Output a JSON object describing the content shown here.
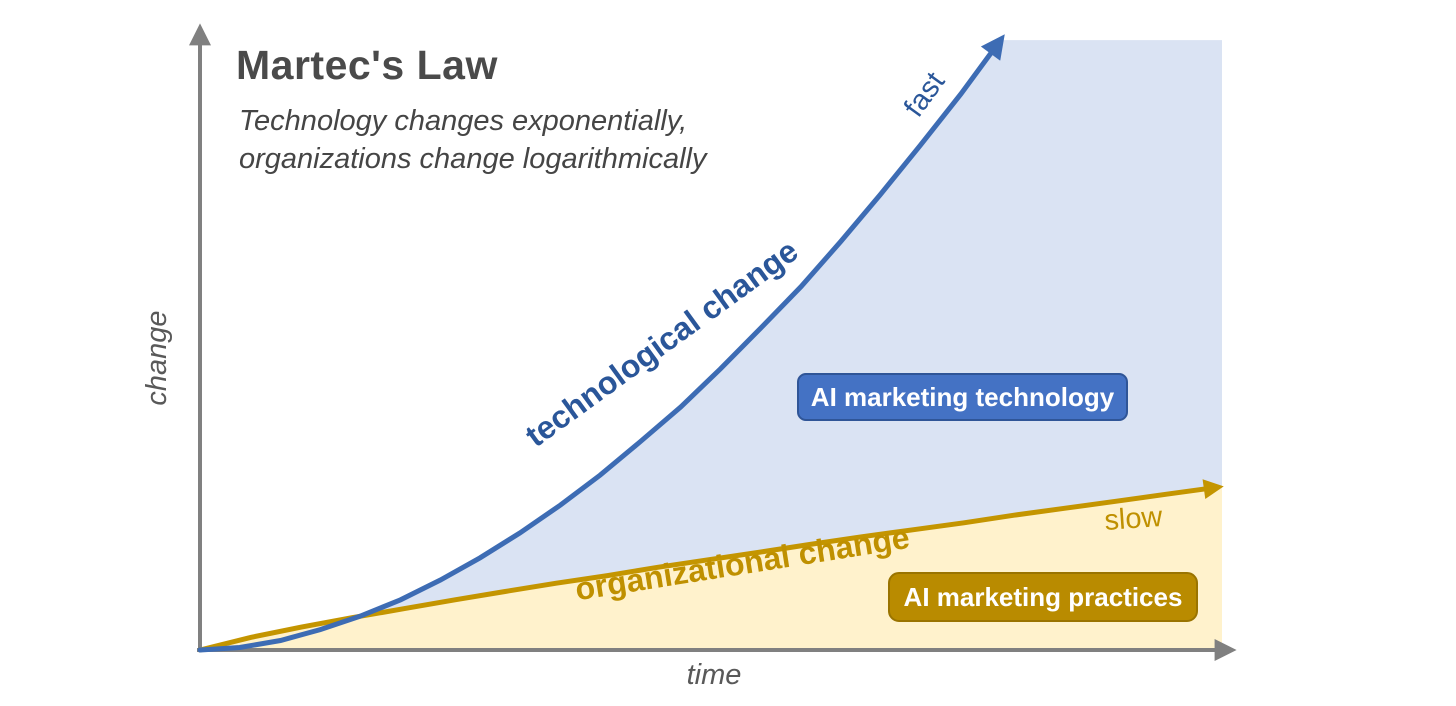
{
  "header": {
    "title": "Martec's Law",
    "subtitle_line1": "Technology changes exponentially,",
    "subtitle_line2": "organizations change logarithmically"
  },
  "axes": {
    "x_label": "time",
    "y_label": "change"
  },
  "annotations": {
    "tech_curve_label": "technological change",
    "tech_speed_label": "fast",
    "org_curve_label": "organizational change",
    "org_speed_label": "slow"
  },
  "badges": {
    "tech_label": "AI marketing technology",
    "org_label": "AI marketing practices"
  },
  "colors": {
    "tech_line": "#3d6cb4",
    "tech_fill": "#dae3f3",
    "tech_label": "#2a5699",
    "tech_badge_bg": "#4472c4",
    "org_line": "#c49500",
    "org_fill": "#fff2cc",
    "org_label": "#bf9000",
    "org_badge_bg": "#b98b00",
    "axis": "#808080",
    "heading_text": "#4a4a4a",
    "badge_text": "#ffffff"
  },
  "chart_data": {
    "type": "line",
    "title": "Martec's Law",
    "subtitle": "Technology changes exponentially, organizations change logarithmically",
    "xlabel": "time",
    "ylabel": "change",
    "x_range": [
      0,
      100
    ],
    "y_range": [
      0,
      100
    ],
    "grid": false,
    "legend_position": "none",
    "fill_right_edge_x": 97.8,
    "series": [
      {
        "name": "technological change",
        "trend": "exponential",
        "speed_label": "fast",
        "color": "#3d6cb4",
        "fill_color": "#dae3f3",
        "x": [
          0,
          3.8,
          7.7,
          11.5,
          15.3,
          19.2,
          23.0,
          26.8,
          30.6,
          34.5,
          38.3,
          42.1,
          46.0,
          49.8,
          53.6,
          57.5,
          61.3,
          65.1,
          68.9,
          72.8,
          76.6
        ],
        "y": [
          0,
          0.4,
          1.5,
          3.2,
          5.3,
          7.9,
          11.0,
          14.5,
          18.4,
          22.8,
          27.5,
          32.7,
          38.2,
          44.2,
          50.5,
          57.1,
          64.2,
          71.6,
          79.3,
          87.4,
          95.9
        ]
      },
      {
        "name": "organizational change",
        "trend": "logarithmic",
        "speed_label": "slow",
        "color": "#c49500",
        "fill_color": "#fff2cc",
        "x": [
          0,
          4.9,
          9.7,
          14.6,
          19.5,
          24.4,
          29.2,
          34.1,
          39.0,
          43.8,
          48.7,
          53.6,
          58.4,
          63.3,
          68.2,
          73.1,
          77.9,
          82.8,
          87.7,
          92.5,
          97.4
        ],
        "y": [
          0,
          2.0,
          3.6,
          5.1,
          6.5,
          7.9,
          9.2,
          10.5,
          11.7,
          13.0,
          14.2,
          15.4,
          16.6,
          17.8,
          18.9,
          20.0,
          21.2,
          22.3,
          23.4,
          24.5,
          25.6
        ]
      }
    ]
  }
}
